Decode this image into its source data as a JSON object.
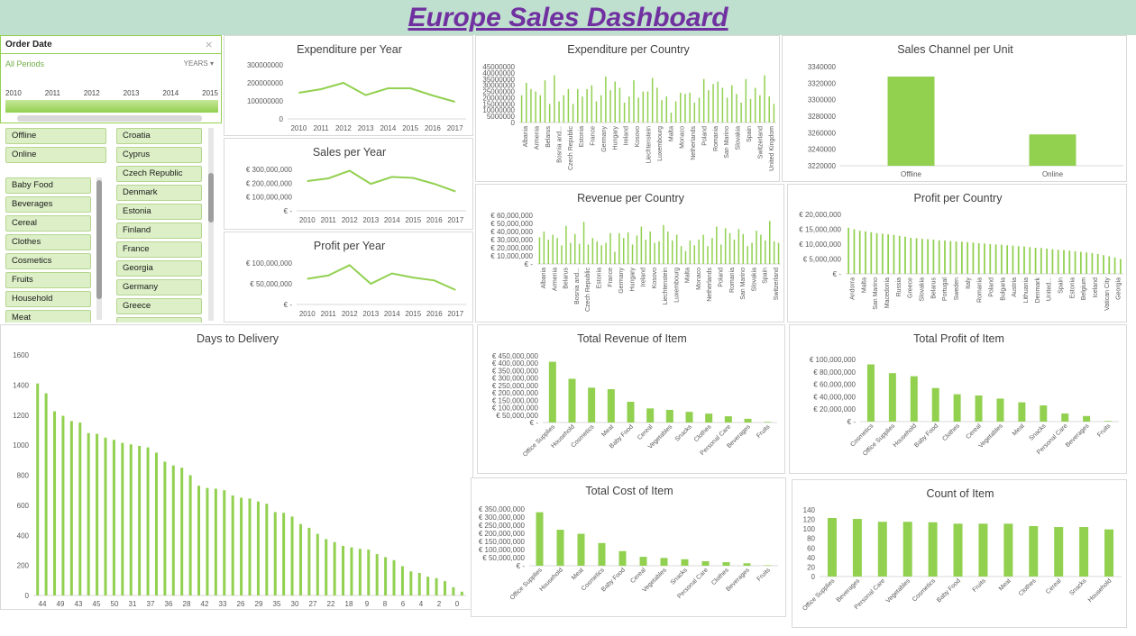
{
  "title": "Europe Sales Dashboard",
  "timeline": {
    "header": "Order Date",
    "all_periods": "All Periods",
    "level": "YEARS",
    "years": [
      "2010",
      "2011",
      "2012",
      "2013",
      "2014",
      "2015"
    ]
  },
  "slicers": {
    "channel": [
      "Offline",
      "Online"
    ],
    "item_type": [
      "Baby Food",
      "Beverages",
      "Cereal",
      "Clothes",
      "Cosmetics",
      "Fruits",
      "Household",
      "Meat"
    ],
    "country": [
      "Croatia",
      "Cyprus",
      "Czech Republic",
      "Denmark",
      "Estonia",
      "Finland",
      "France",
      "Georgia",
      "Germany",
      "Greece"
    ]
  },
  "colors": {
    "accent": "#92d050",
    "title": "#7030a0",
    "header_bg": "#bfdfcf"
  },
  "chart_data": [
    {
      "id": "expenditure_per_year",
      "type": "line",
      "title": "Expenditure per Year",
      "x": [
        "2010",
        "2011",
        "2012",
        "2013",
        "2014",
        "2015",
        "2016",
        "2017"
      ],
      "values": [
        145000000,
        165000000,
        200000000,
        132000000,
        170000000,
        170000000,
        130000000,
        95000000
      ],
      "ylim": [
        0,
        300000000
      ],
      "yticks": [
        "0",
        "100000000",
        "200000000",
        "300000000"
      ]
    },
    {
      "id": "sales_per_year",
      "type": "line",
      "title": "Sales per Year",
      "x": [
        "2010",
        "2011",
        "2012",
        "2013",
        "2014",
        "2015",
        "2016",
        "2017"
      ],
      "values": [
        215000000,
        235000000,
        290000000,
        195000000,
        245000000,
        238000000,
        195000000,
        140000000
      ],
      "ylim": [
        0,
        300000000
      ],
      "yticks": [
        "€ -",
        "€ 100,000,000",
        "€ 200,000,000",
        "€ 300,000,000"
      ]
    },
    {
      "id": "profit_per_year",
      "type": "line",
      "title": "Profit per Year",
      "x": [
        "2010",
        "2011",
        "2012",
        "2013",
        "2014",
        "2015",
        "2016",
        "2017"
      ],
      "values": [
        62000000,
        70000000,
        95000000,
        50000000,
        75000000,
        65000000,
        58000000,
        35000000
      ],
      "ylim": [
        0,
        100000000
      ],
      "yticks": [
        "€ -",
        "€ 50,000,000",
        "€ 100,000,000"
      ]
    },
    {
      "id": "expenditure_per_country",
      "type": "bar",
      "title": "Expenditure per Country",
      "tick_labels": [
        "Albania",
        "Armenia",
        "Belarus",
        "Bosnia and...",
        "Czech Republic",
        "Estonia",
        "France",
        "Germany",
        "Hungary",
        "Ireland",
        "Kosovo",
        "Liechtenstein",
        "Luxembourg",
        "Malta",
        "Monaco",
        "Netherlands",
        "Poland",
        "Romania",
        "San Marino",
        "Slovakia",
        "Spain",
        "Switzerland",
        "United Kingdom"
      ],
      "values": [
        22000000,
        32000000,
        27000000,
        25000000,
        22000000,
        34000000,
        15000000,
        38000000,
        17000000,
        22000000,
        27000000,
        15000000,
        27000000,
        21000000,
        27000000,
        30000000,
        17000000,
        22000000,
        37000000,
        26000000,
        33000000,
        28000000,
        16000000,
        21000000,
        34000000,
        20000000,
        25000000,
        25000000,
        36000000,
        28000000,
        18000000,
        21000000,
        8000000,
        17000000,
        24000000,
        23000000,
        24000000,
        16000000,
        20000000,
        35000000,
        26000000,
        31000000,
        33000000,
        28000000,
        20000000,
        30000000,
        23000000,
        16000000,
        35000000,
        19000000,
        28000000,
        22000000,
        38000000,
        21000000,
        15000000
      ],
      "ylim": [
        0,
        45000000
      ],
      "yticks": [
        "0",
        "5000000",
        "10000000",
        "15000000",
        "20000000",
        "25000000",
        "30000000",
        "35000000",
        "40000000",
        "45000000"
      ]
    },
    {
      "id": "sales_channel_per_unit",
      "type": "bar",
      "title": "Sales Channel per Unit",
      "categories": [
        "Offline",
        "Online"
      ],
      "values": [
        3328000,
        3258000
      ],
      "ylim": [
        3220000,
        3340000
      ],
      "yticks": [
        "3220000",
        "3240000",
        "3260000",
        "3280000",
        "3300000",
        "3320000",
        "3340000"
      ]
    },
    {
      "id": "revenue_per_country",
      "type": "bar",
      "title": "Revenue per Country",
      "tick_labels": [
        "Albania",
        "Armenia",
        "Belarus",
        "Bosnia and...",
        "Czech Republic",
        "Estonia",
        "France",
        "Germany",
        "Hungary",
        "Ireland",
        "Kosovo",
        "Liechtenstein",
        "Luxembourg",
        "Malta",
        "Monaco",
        "Netherlands",
        "Poland",
        "Romania",
        "San Marino",
        "Slovakia",
        "Spain",
        "Switzerland"
      ],
      "values": [
        33000000,
        40000000,
        30000000,
        36000000,
        32000000,
        23000000,
        47000000,
        26000000,
        37000000,
        25000000,
        52000000,
        24000000,
        32000000,
        28000000,
        23000000,
        26000000,
        38000000,
        15000000,
        38000000,
        32000000,
        39000000,
        24000000,
        35000000,
        46000000,
        30000000,
        40000000,
        26000000,
        28000000,
        48000000,
        40000000,
        29000000,
        36000000,
        22000000,
        16000000,
        29000000,
        23000000,
        30000000,
        36000000,
        22000000,
        32000000,
        46000000,
        24000000,
        44000000,
        38000000,
        30000000,
        43000000,
        37000000,
        22000000,
        26000000,
        41000000,
        36000000,
        29000000,
        53000000,
        28000000,
        26000000
      ],
      "ylim": [
        0,
        60000000
      ],
      "yticks": [
        "€ -",
        "€ 10,000,000",
        "€ 20,000,000",
        "€ 30,000,000",
        "€ 40,000,000",
        "€ 50,000,000",
        "€ 60,000,000"
      ]
    },
    {
      "id": "profit_per_country",
      "type": "bar",
      "title": "Profit per Country",
      "tick_labels": [
        "Andorra",
        "Malta",
        "San Marino",
        "Macedonia",
        "Russia",
        "Greece",
        "Slovakia",
        "Belarus",
        "Portugal",
        "Sweden",
        "Italy",
        "Romania",
        "Poland",
        "Bulgaria",
        "Austria",
        "Lithuania",
        "Denmark",
        "United...",
        "Spain",
        "Estonia",
        "Belgium",
        "Iceland",
        "Vatican City",
        "Georgia"
      ],
      "values": [
        15500000,
        15000000,
        14500000,
        14300000,
        14000000,
        13700000,
        13500000,
        13300000,
        13100000,
        12800000,
        12500000,
        12100000,
        12000000,
        11800000,
        11700000,
        11500000,
        11300000,
        11200000,
        11000000,
        10900000,
        10800000,
        10700000,
        10500000,
        10300000,
        10200000,
        10000000,
        9900000,
        9800000,
        9600000,
        9500000,
        9300000,
        9200000,
        9000000,
        8800000,
        8700000,
        8500000,
        8300000,
        8100000,
        8000000,
        7800000,
        7600000,
        7400000,
        7200000,
        7000000,
        6700000,
        6300000,
        5900000,
        5500000,
        5000000
      ],
      "ylim": [
        0,
        20000000
      ],
      "yticks": [
        "€ -",
        "€ 5,000,000",
        "€ 10,000,000",
        "€ 15,000,000",
        "€ 20,000,000"
      ]
    },
    {
      "id": "days_to_delivery",
      "type": "bar",
      "title": "Days to Delivery",
      "tick_labels": [
        "44",
        "49",
        "43",
        "45",
        "50",
        "31",
        "37",
        "36",
        "28",
        "42",
        "33",
        "26",
        "29",
        "35",
        "30",
        "27",
        "22",
        "18",
        "9",
        "8",
        "6",
        "4",
        "2",
        "0"
      ],
      "values": [
        1410,
        1345,
        1225,
        1195,
        1160,
        1150,
        1080,
        1075,
        1050,
        1035,
        1015,
        1005,
        995,
        985,
        950,
        890,
        865,
        850,
        800,
        730,
        715,
        710,
        700,
        665,
        650,
        645,
        625,
        610,
        555,
        550,
        525,
        475,
        450,
        410,
        375,
        355,
        330,
        320,
        310,
        305,
        275,
        255,
        235,
        195,
        160,
        150,
        125,
        115,
        95,
        55,
        25
      ],
      "ylim": [
        0,
        1600
      ],
      "yticks": [
        "0",
        "200",
        "400",
        "600",
        "800",
        "1000",
        "1200",
        "1400",
        "1600"
      ]
    },
    {
      "id": "total_revenue_of_item",
      "type": "bar",
      "title": "Total Revenue of Item",
      "categories": [
        "Office Supplies",
        "Household",
        "Cosmetics",
        "Meat",
        "Baby Food",
        "Cereal",
        "Vegetables",
        "Snacks",
        "Clothes",
        "Personal Care",
        "Beverages",
        "Fruits"
      ],
      "values": [
        410000000,
        295000000,
        235000000,
        225000000,
        140000000,
        95000000,
        85000000,
        72000000,
        60000000,
        42000000,
        25000000,
        4000000
      ],
      "ylim": [
        0,
        450000000
      ],
      "yticks": [
        "€ -",
        "€ 50,000,000",
        "€ 100,000,000",
        "€ 150,000,000",
        "€ 200,000,000",
        "€ 250,000,000",
        "€ 300,000,000",
        "€ 350,000,000",
        "€ 400,000,000",
        "€ 450,000,000"
      ]
    },
    {
      "id": "total_profit_of_item",
      "type": "bar",
      "title": "Total Profit of Item",
      "categories": [
        "Cosmetics",
        "Office Supplies",
        "Household",
        "Baby Food",
        "Clothes",
        "Cereal",
        "Vegetables",
        "Meat",
        "Snacks",
        "Personal Care",
        "Beverages",
        "Fruits"
      ],
      "values": [
        92000000,
        78000000,
        73000000,
        54000000,
        44000000,
        42000000,
        37000000,
        31000000,
        26000000,
        13000000,
        9000000,
        1000000
      ],
      "ylim": [
        0,
        100000000
      ],
      "yticks": [
        "€ -",
        "€ 20,000,000",
        "€ 40,000,000",
        "€ 60,000,000",
        "€ 80,000,000",
        "€ 100,000,000"
      ]
    },
    {
      "id": "total_cost_of_item",
      "type": "bar",
      "title": "Total Cost of Item",
      "categories": [
        "Office Supplies",
        "Household",
        "Meat",
        "Cosmetics",
        "Baby Food",
        "Cereal",
        "Vegetables",
        "Snacks",
        "Personal Care",
        "Clothes",
        "Beverages",
        "Fruits"
      ],
      "values": [
        330000000,
        222000000,
        197000000,
        140000000,
        90000000,
        55000000,
        48000000,
        40000000,
        28000000,
        22000000,
        15000000,
        3000000
      ],
      "ylim": [
        0,
        350000000
      ],
      "yticks": [
        "€ -",
        "€ 50,000,000",
        "€ 100,000,000",
        "€ 150,000,000",
        "€ 200,000,000",
        "€ 250,000,000",
        "€ 300,000,000",
        "€ 350,000,000"
      ]
    },
    {
      "id": "count_of_item",
      "type": "bar",
      "title": "Count of Item",
      "categories": [
        "Office Supplies",
        "Beverages",
        "Personal Care",
        "Vegetables",
        "Cosmetics",
        "Baby Food",
        "Fruits",
        "Meat",
        "Clothes",
        "Cereal",
        "Snacks",
        "Household"
      ],
      "values": [
        123,
        121,
        115,
        115,
        114,
        111,
        111,
        111,
        106,
        104,
        104,
        99
      ],
      "ylim": [
        0,
        140
      ],
      "yticks": [
        "0",
        "20",
        "40",
        "60",
        "80",
        "100",
        "120",
        "140"
      ]
    }
  ]
}
